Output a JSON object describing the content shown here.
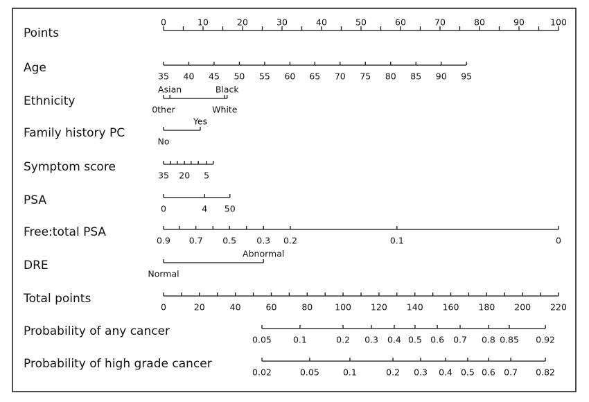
{
  "nomogram": {
    "points_lim": [
      0,
      100
    ],
    "total_lim": [
      0,
      220
    ],
    "rows": [
      {
        "label": "Points",
        "scale": "points",
        "ticks_above": [
          {
            "at": 0,
            "label": "0"
          },
          {
            "at": 5,
            "label": null
          },
          {
            "at": 10,
            "label": "10"
          },
          {
            "at": 15,
            "label": null
          },
          {
            "at": 20,
            "label": "20"
          },
          {
            "at": 25,
            "label": null
          },
          {
            "at": 30,
            "label": "30"
          },
          {
            "at": 35,
            "label": null
          },
          {
            "at": 40,
            "label": "40"
          },
          {
            "at": 45,
            "label": null
          },
          {
            "at": 50,
            "label": "50"
          },
          {
            "at": 55,
            "label": null
          },
          {
            "at": 60,
            "label": "60"
          },
          {
            "at": 65,
            "label": null
          },
          {
            "at": 70,
            "label": "70"
          },
          {
            "at": 75,
            "label": null
          },
          {
            "at": 80,
            "label": "80"
          },
          {
            "at": 85,
            "label": null
          },
          {
            "at": 90,
            "label": "90"
          },
          {
            "at": 95,
            "label": null
          },
          {
            "at": 100,
            "label": "100"
          }
        ],
        "ticks_below": []
      },
      {
        "label": "Age",
        "scale": "points",
        "ticks_above": [],
        "ticks_below": [
          {
            "at": 0,
            "label": "35"
          },
          {
            "at": 6.4,
            "label": "40"
          },
          {
            "at": 12.8,
            "label": "45"
          },
          {
            "at": 19.2,
            "label": "50"
          },
          {
            "at": 25.6,
            "label": "55"
          },
          {
            "at": 32.0,
            "label": "60"
          },
          {
            "at": 38.3,
            "label": "65"
          },
          {
            "at": 44.7,
            "label": "70"
          },
          {
            "at": 51.1,
            "label": "75"
          },
          {
            "at": 57.5,
            "label": "80"
          },
          {
            "at": 63.9,
            "label": "85"
          },
          {
            "at": 70.3,
            "label": "90"
          },
          {
            "at": 76.7,
            "label": "95"
          }
        ]
      },
      {
        "label": "Ethnicity",
        "scale": "points",
        "ticks_above": [
          {
            "at": 1.6,
            "label": "Asian"
          },
          {
            "at": 16.1,
            "label": "Black"
          }
        ],
        "ticks_below": [
          {
            "at": 0,
            "label": "0ther"
          },
          {
            "at": 15.5,
            "label": "White"
          }
        ]
      },
      {
        "label": "Family history PC",
        "scale": "points",
        "ticks_above": [
          {
            "at": 9.3,
            "label": "Yes"
          }
        ],
        "ticks_below": [
          {
            "at": 0,
            "label": "No"
          }
        ]
      },
      {
        "label": "Symptom score",
        "scale": "points",
        "ticks_above": [],
        "ticks_below": [
          {
            "at": 0,
            "label": "35"
          },
          {
            "at": 1.8,
            "label": null
          },
          {
            "at": 3.5,
            "label": null
          },
          {
            "at": 5.3,
            "label": "20"
          },
          {
            "at": 7.0,
            "label": null
          },
          {
            "at": 8.8,
            "label": null
          },
          {
            "at": 10.9,
            "label": "5"
          },
          {
            "at": 12.6,
            "label": null
          }
        ]
      },
      {
        "label": "PSA",
        "scale": "points",
        "ticks_above": [],
        "ticks_below": [
          {
            "at": 0,
            "label": "0"
          },
          {
            "at": 10.4,
            "label": "4"
          },
          {
            "at": 16.8,
            "label": "50"
          }
        ]
      },
      {
        "label": "Free:total PSA",
        "scale": "points",
        "ticks_above": [],
        "ticks_below": [
          {
            "at": 0,
            "label": "0.9"
          },
          {
            "at": 4.0,
            "label": null
          },
          {
            "at": 8.2,
            "label": "0.7"
          },
          {
            "at": 12.5,
            "label": null
          },
          {
            "at": 16.7,
            "label": "0.5"
          },
          {
            "at": 21.0,
            "label": null
          },
          {
            "at": 25.3,
            "label": "0.3"
          },
          {
            "at": 32.1,
            "label": "0.2"
          },
          {
            "at": 59.1,
            "label": "0.1"
          },
          {
            "at": 100,
            "label": "0"
          }
        ]
      },
      {
        "label": "DRE",
        "scale": "points",
        "ticks_above": [
          {
            "at": 25.3,
            "label": "Abnormal"
          }
        ],
        "ticks_below": [
          {
            "at": 0,
            "label": "Normal"
          }
        ]
      },
      {
        "label": "Total points",
        "scale": "total",
        "ticks_above": [],
        "ticks_below": [
          {
            "at": 0,
            "label": "0"
          },
          {
            "at": 10,
            "label": null
          },
          {
            "at": 20,
            "label": "20"
          },
          {
            "at": 30,
            "label": null
          },
          {
            "at": 40,
            "label": "40"
          },
          {
            "at": 50,
            "label": null
          },
          {
            "at": 60,
            "label": "60"
          },
          {
            "at": 70,
            "label": null
          },
          {
            "at": 80,
            "label": "80"
          },
          {
            "at": 90,
            "label": null
          },
          {
            "at": 100,
            "label": "100"
          },
          {
            "at": 110,
            "label": null
          },
          {
            "at": 120,
            "label": "120"
          },
          {
            "at": 130,
            "label": null
          },
          {
            "at": 140,
            "label": "140"
          },
          {
            "at": 150,
            "label": null
          },
          {
            "at": 160,
            "label": "160"
          },
          {
            "at": 170,
            "label": null
          },
          {
            "at": 180,
            "label": "180"
          },
          {
            "at": 190,
            "label": null
          },
          {
            "at": 200,
            "label": "200"
          },
          {
            "at": 210,
            "label": null
          },
          {
            "at": 220,
            "label": "220"
          }
        ]
      },
      {
        "label": "Probability of any cancer",
        "scale": "total",
        "ticks_above": [],
        "ticks_below": [
          {
            "at": 54.8,
            "label": "0.05"
          },
          {
            "at": 76.0,
            "label": "0.1"
          },
          {
            "at": 100.0,
            "label": "0.2"
          },
          {
            "at": 115.8,
            "label": "0.3"
          },
          {
            "at": 128.5,
            "label": "0.4"
          },
          {
            "at": 140.1,
            "label": "0.5"
          },
          {
            "at": 152.5,
            "label": "0.6"
          },
          {
            "at": 165.2,
            "label": "0.7"
          },
          {
            "at": 181.0,
            "label": "0.8"
          },
          {
            "at": 192.6,
            "label": "0.85"
          },
          {
            "at": 212.7,
            "label": "0.92"
          }
        ]
      },
      {
        "label": "Probability of high grade cancer",
        "scale": "total",
        "ticks_above": [],
        "ticks_below": [
          {
            "at": 54.8,
            "label": "0.02"
          },
          {
            "at": 81.4,
            "label": "0.05"
          },
          {
            "at": 103.8,
            "label": "0.1"
          },
          {
            "at": 127.8,
            "label": "0.2"
          },
          {
            "at": 143.2,
            "label": "0.3"
          },
          {
            "at": 157.1,
            "label": "0.4"
          },
          {
            "at": 169.4,
            "label": "0.5"
          },
          {
            "at": 181.0,
            "label": "0.6"
          },
          {
            "at": 193.4,
            "label": "0.7"
          },
          {
            "at": 212.7,
            "label": "0.82"
          }
        ]
      }
    ]
  }
}
